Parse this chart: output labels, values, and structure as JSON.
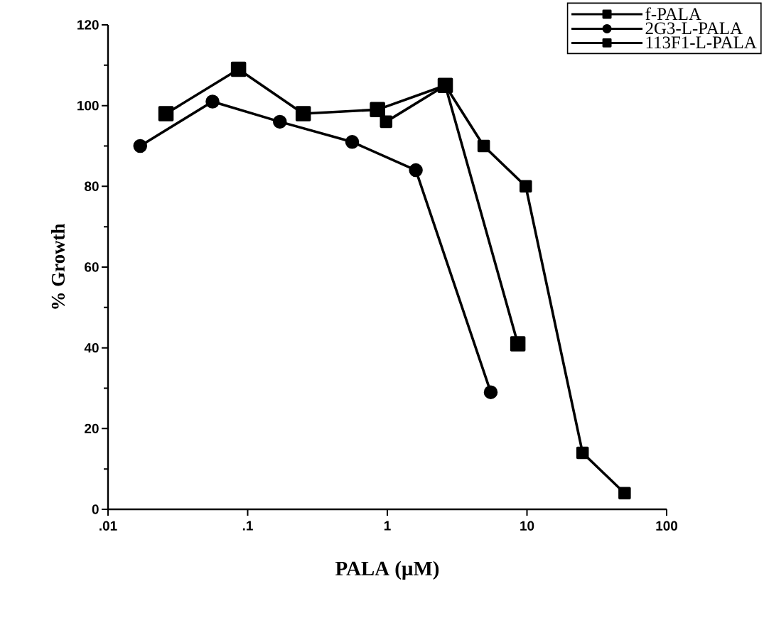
{
  "chart_data": {
    "type": "line",
    "xlabel": "PALA  (µM)",
    "ylabel": "% Growth",
    "log": "x",
    "xlim": [
      0.01,
      100
    ],
    "xticks": [
      {
        "value": 0.01,
        "label": ".01"
      },
      {
        "value": 0.1,
        "label": ".1"
      },
      1,
      10,
      100
    ],
    "ylim": [
      0,
      120
    ],
    "yticks": [
      0,
      20,
      40,
      60,
      80,
      100,
      120
    ],
    "grid": false,
    "legend": "top right",
    "line_style": "solid",
    "series": [
      {
        "name": "f-PALA",
        "color": "#000000",
        "marker": "square",
        "x": [
          0.026,
          0.086,
          0.25,
          0.85,
          2.6,
          8.6
        ],
        "values": [
          98,
          109,
          98,
          99,
          105,
          41
        ]
      },
      {
        "name": "2G3-L-PALA",
        "color": "#000000",
        "marker": "circle",
        "x": [
          0.017,
          0.056,
          0.17,
          0.56,
          1.6,
          5.5
        ],
        "values": [
          90,
          101,
          96,
          91,
          84,
          29
        ]
      },
      {
        "name": "113F1-L-PALA",
        "color": "#000000",
        "marker": "square",
        "x": [
          0.98,
          2.6,
          4.9,
          9.8,
          25,
          50
        ],
        "values": [
          96,
          105,
          90,
          80,
          14,
          4
        ]
      }
    ]
  }
}
